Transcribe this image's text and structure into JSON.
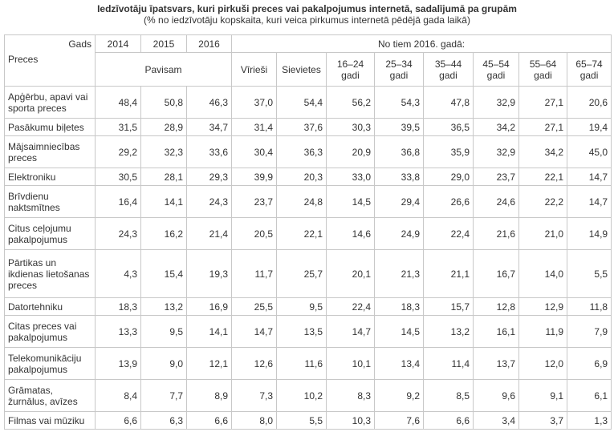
{
  "title": "Iedzīvotāju īpatsvars, kuri pirkuši preces vai pakalpojumus internetā, sadalījumā pa grupām",
  "subtitle": "(% no iedzīvotāju kopskaita, kuri veica pirkumus internetā pēdējā gada laikā)",
  "header": {
    "gads": "Gads",
    "preces": "Preces",
    "years": [
      "2014",
      "2015",
      "2016"
    ],
    "pavisam": "Pavisam",
    "no_tiem": "No tiem 2016. gadā:",
    "groups": [
      "Vīrieši",
      "Sievietes",
      "16–24 gadi",
      "25–34 gadi",
      "35–44 gadi",
      "45–54 gadi",
      "55–64 gadi",
      "65–74 gadi"
    ]
  },
  "rows": [
    {
      "name": "Apģērbu, apavi vai sporta preces",
      "values": [
        "48,4",
        "50,8",
        "46,3",
        "37,0",
        "54,4",
        "56,2",
        "54,3",
        "47,8",
        "32,9",
        "27,1",
        "20,6"
      ]
    },
    {
      "name": "Pasākumu biļetes",
      "values": [
        "31,5",
        "28,9",
        "34,7",
        "31,4",
        "37,6",
        "30,3",
        "39,5",
        "36,5",
        "34,2",
        "27,1",
        "19,4"
      ]
    },
    {
      "name": "Mājsaimniecības preces",
      "values": [
        "29,2",
        "32,3",
        "33,6",
        "30,4",
        "36,3",
        "20,9",
        "36,8",
        "35,9",
        "32,9",
        "34,2",
        "45,0"
      ]
    },
    {
      "name": "Elektroniku",
      "values": [
        "30,5",
        "28,1",
        "29,3",
        "39,9",
        "20,3",
        "33,0",
        "33,8",
        "29,0",
        "23,7",
        "22,1",
        "14,7"
      ]
    },
    {
      "name": "Brīvdienu naktsmītnes",
      "values": [
        "16,4",
        "14,1",
        "24,3",
        "23,7",
        "24,8",
        "14,5",
        "29,4",
        "26,6",
        "24,6",
        "22,2",
        "14,7"
      ]
    },
    {
      "name": "Citus ceļojumu pakalpojumus",
      "values": [
        "24,3",
        "16,2",
        "21,4",
        "20,5",
        "22,1",
        "14,6",
        "24,9",
        "22,4",
        "21,6",
        "21,0",
        "14,9"
      ]
    },
    {
      "name": "Pārtikas un ikdienas lietošanas preces",
      "values": [
        "4,3",
        "15,4",
        "19,3",
        "11,7",
        "25,7",
        "20,1",
        "21,3",
        "21,1",
        "16,7",
        "14,0",
        "5,5"
      ]
    },
    {
      "name": "Datortehniku",
      "values": [
        "18,3",
        "13,2",
        "16,9",
        "25,5",
        "9,5",
        "22,4",
        "18,3",
        "15,7",
        "12,8",
        "12,9",
        "11,8"
      ]
    },
    {
      "name": "Citas preces vai pakalpojumus",
      "values": [
        "13,3",
        "9,5",
        "14,1",
        "14,7",
        "13,5",
        "14,7",
        "14,5",
        "13,2",
        "16,1",
        "11,9",
        "7,9"
      ]
    },
    {
      "name": "Telekomunikāciju pakalpojumus",
      "values": [
        "13,9",
        "9,0",
        "12,1",
        "12,6",
        "11,6",
        "10,1",
        "13,4",
        "11,4",
        "13,7",
        "12,0",
        "6,9"
      ]
    },
    {
      "name": "Grāmatas, žurnālus, avīzes",
      "values": [
        "8,4",
        "7,7",
        "8,9",
        "7,3",
        "10,2",
        "8,3",
        "9,2",
        "8,5",
        "9,6",
        "9,1",
        "6,1"
      ]
    },
    {
      "name": "Filmas vai mūziku",
      "values": [
        "6,6",
        "6,3",
        "6,6",
        "8,0",
        "5,5",
        "10,3",
        "7,6",
        "6,6",
        "3,4",
        "3,7",
        "1,3"
      ]
    }
  ]
}
